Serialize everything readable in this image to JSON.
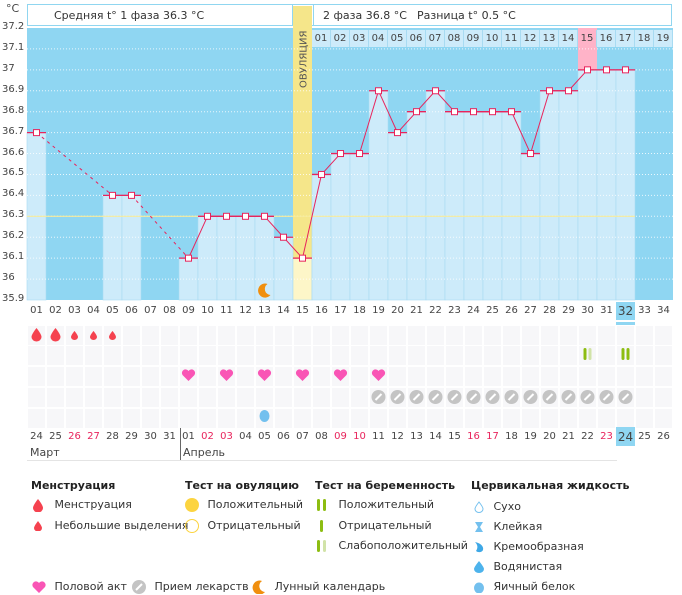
{
  "header": {
    "unit_label": "°C",
    "phase1_text": "Средняя t° 1 фаза 36.3 °C",
    "phase2_text": "2 фаза 36.8 °C",
    "diff_text": "Разница t° 0.5 °C",
    "ovulation_label": "ОВУЛЯЦИЯ"
  },
  "phase2_day_labels": [
    "01",
    "02",
    "03",
    "04",
    "05",
    "06",
    "07",
    "08",
    "09",
    "10",
    "11",
    "12",
    "13",
    "14",
    "15",
    "16",
    "17",
    "18",
    "19"
  ],
  "chart_data": {
    "type": "line",
    "title": "Базальная температура",
    "ylabel": "°C",
    "ylim": [
      35.9,
      37.2
    ],
    "yticks": [
      "37.2",
      "37.1",
      "37",
      "36.9",
      "36.8",
      "36.7",
      "36.6",
      "36.5",
      "36.4",
      "36.3",
      "36.2",
      "36.1",
      "36",
      "35.9"
    ],
    "cycle_days": [
      "01",
      "02",
      "03",
      "04",
      "05",
      "06",
      "07",
      "08",
      "09",
      "10",
      "11",
      "12",
      "13",
      "14",
      "15",
      "16",
      "17",
      "18",
      "19",
      "20",
      "21",
      "22",
      "23",
      "24",
      "25",
      "26",
      "27",
      "28",
      "29",
      "30",
      "31",
      "32",
      "33",
      "34"
    ],
    "current_cycle_day": "32",
    "series": [
      {
        "name": "Температура",
        "values": [
          36.7,
          null,
          null,
          null,
          36.4,
          36.4,
          null,
          null,
          36.1,
          36.3,
          36.3,
          36.3,
          36.3,
          36.2,
          36.1,
          36.5,
          36.6,
          36.6,
          36.9,
          36.7,
          36.8,
          36.9,
          36.8,
          36.8,
          36.8,
          36.8,
          36.6,
          36.9,
          36.9,
          37.0,
          37.0,
          37.0,
          null,
          null
        ]
      }
    ],
    "coverline": 36.3,
    "ovulation_day": 15,
    "phase2_highlight_day": 30,
    "grid": true,
    "calendar_dates": [
      "24",
      "25",
      "26",
      "27",
      "28",
      "29",
      "30",
      "31",
      "01",
      "02",
      "03",
      "04",
      "05",
      "06",
      "07",
      "08",
      "09",
      "10",
      "11",
      "12",
      "13",
      "14",
      "15",
      "16",
      "17",
      "18",
      "19",
      "20",
      "21",
      "22",
      "23",
      "24",
      "25",
      "26"
    ],
    "weekend_dates_idx": [
      2,
      3,
      9,
      10,
      16,
      17,
      23,
      24,
      30
    ],
    "today_idx": 31,
    "months": [
      "Март",
      "Апрель"
    ],
    "markers": {
      "menstruation_heavy_days": [
        1,
        2
      ],
      "menstruation_light_days": [
        3,
        4,
        5
      ],
      "intercourse_days": [
        9,
        11,
        13,
        15,
        17,
        19
      ],
      "medication_days": [
        19,
        20,
        21,
        22,
        23,
        24,
        25,
        26,
        27,
        28,
        29,
        30,
        31,
        32
      ],
      "pregnancy_test_weak_days": [
        30
      ],
      "pregnancy_test_positive_days": [
        32
      ],
      "cervical_egg_white_days": [
        13
      ],
      "moon_days": [
        13
      ]
    }
  },
  "legend": {
    "menstruation": {
      "title": "Менструация",
      "items": [
        "Менструация",
        "Небольшие выделения"
      ]
    },
    "ovulation_test": {
      "title": "Тест на овуляцию",
      "items": [
        "Положительный",
        "Отрицательный"
      ]
    },
    "pregnancy_test": {
      "title": "Тест на беременность",
      "items": [
        "Положительный",
        "Отрицательный",
        "Слабоположительный"
      ]
    },
    "cervical": {
      "title": "Цервикальная жидкость",
      "items": [
        "Сухо",
        "Клейкая",
        "Кремообразная",
        "Водянистая",
        "Яичный белок"
      ]
    },
    "bottom": [
      "Половой акт",
      "Прием лекарств",
      "Лунный календарь"
    ]
  },
  "colors": {
    "plot_bg": "#8fd6f2",
    "bar": "#cdebfa",
    "line": "#e8245c",
    "coverline": "#f6eb9c",
    "ovulation": "#f5e68a",
    "highlight_pink": "#ffb3c8",
    "heart": "#f955b5",
    "drop": "#f5424f",
    "pill": "#8dbd12",
    "medication": "#c4c4c4",
    "moon": "#f08f0e",
    "egg_white": "#73c0ee"
  }
}
